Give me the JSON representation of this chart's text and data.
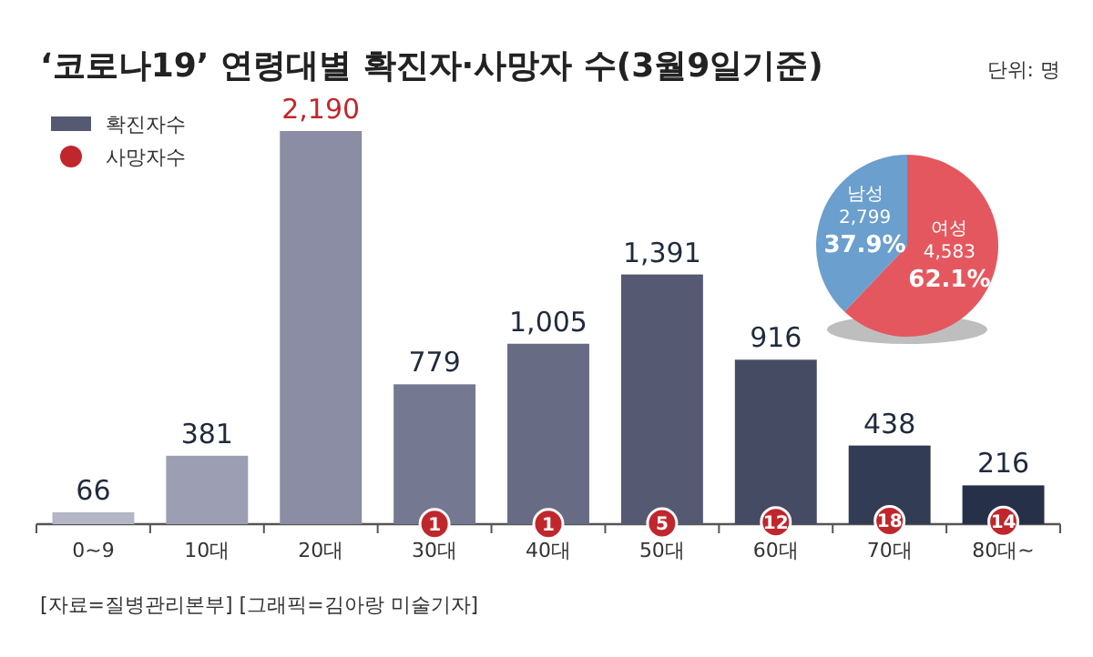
{
  "chart_data": [
    {
      "type": "bar",
      "title": "‘코로나19’ 연령대별 확진자·사망자 수(3월9일기준)",
      "categories": [
        "0~9",
        "10대",
        "20대",
        "30대",
        "40대",
        "50대",
        "60대",
        "70대",
        "80대~"
      ],
      "series": [
        {
          "name": "확진자수",
          "type": "bar",
          "color": "#555a72",
          "colors": [
            "#b4b6c6",
            "#9c9fb3",
            "#8a8da3",
            "#747891",
            "#686b84",
            "#555a72",
            "#454b63",
            "#333c55",
            "#263149"
          ],
          "values": [
            66,
            381,
            2190,
            779,
            1005,
            1391,
            916,
            438,
            216
          ],
          "value_labels": [
            "66",
            "381",
            "2,190",
            "779",
            "1,005",
            "1,391",
            "916",
            "438",
            "216"
          ]
        },
        {
          "name": "사망자수",
          "type": "scatter",
          "color": "#c0272d",
          "values": [
            null,
            null,
            null,
            1,
            1,
            5,
            12,
            18,
            14
          ],
          "value_labels": [
            null,
            null,
            null,
            "1",
            "1",
            "5",
            "12",
            "18",
            "14"
          ]
        }
      ],
      "legend": "top left",
      "annotations": [
        "단위: 명",
        "[자료=질병관리본부] [그래픽=김아랑 미술기자]"
      ]
    },
    {
      "type": "pie",
      "categories": [
        "남성",
        "여성"
      ],
      "values": [
        2799,
        4583
      ],
      "colors": [
        "#6a9fce",
        "#e5575e"
      ],
      "value_labels": [
        "2,799",
        "4,583"
      ],
      "annotations": [
        "37.9%",
        "62.1%"
      ]
    }
  ]
}
